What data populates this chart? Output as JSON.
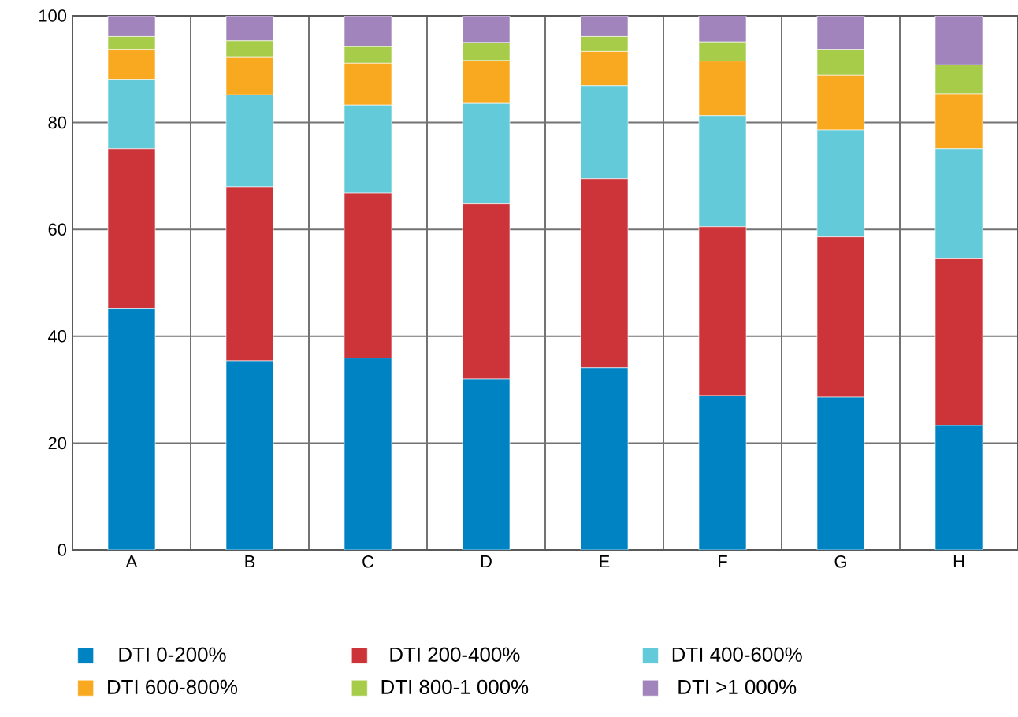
{
  "chart_data": {
    "type": "bar",
    "stacked": true,
    "categories": [
      "A",
      "B",
      "C",
      "D",
      "E",
      "F",
      "G",
      "H"
    ],
    "series": [
      {
        "name": "DTI 0-200%",
        "color": "#0083c3",
        "values": [
          45.2,
          35.4,
          35.9,
          32.0,
          34.1,
          28.9,
          28.6,
          23.3
        ]
      },
      {
        "name": "DTI 200-400%",
        "color": "#cc343a",
        "values": [
          29.9,
          32.6,
          30.9,
          32.8,
          35.4,
          31.6,
          30.0,
          31.2
        ]
      },
      {
        "name": "DTI 400-600%",
        "color": "#62cad8",
        "values": [
          13.0,
          17.2,
          16.5,
          18.8,
          17.4,
          20.8,
          20.0,
          20.6
        ]
      },
      {
        "name": "DTI 600-800%",
        "color": "#f9a920",
        "values": [
          5.6,
          7.1,
          7.8,
          8.0,
          6.4,
          10.2,
          10.3,
          10.3
        ]
      },
      {
        "name": "DTI 800-1 000%",
        "color": "#a6cc4a",
        "values": [
          2.4,
          3.0,
          3.1,
          3.4,
          2.8,
          3.6,
          4.8,
          5.4
        ]
      },
      {
        "name": "DTI >1 000%",
        "color": "#a084bb",
        "values": [
          3.9,
          4.7,
          5.8,
          5.0,
          3.9,
          5.3,
          6.3,
          9.2
        ]
      }
    ],
    "ylim": [
      0,
      100
    ],
    "yticks": [
      0,
      20,
      40,
      60,
      80,
      100
    ],
    "grid": true,
    "legend": "bottom"
  }
}
